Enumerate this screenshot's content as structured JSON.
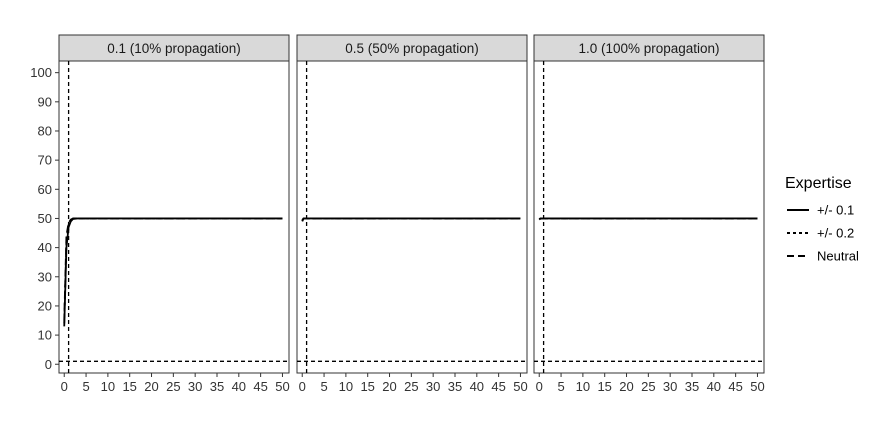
{
  "chart_data": {
    "type": "line",
    "facets": [
      {
        "label": "0.1 (10% propagation)",
        "series": [
          {
            "name": "+/- 0.1",
            "x": [
              0,
              0.5,
              1,
              1.5,
              2,
              3,
              5,
              10,
              20,
              30,
              40,
              50
            ],
            "y": [
              13,
              40,
              47,
              49,
              49.8,
              50,
              50,
              50,
              50,
              50,
              50,
              50
            ]
          },
          {
            "name": "+/- 0.2",
            "x": [
              0,
              0.5,
              1,
              1.5,
              2,
              3,
              5,
              10,
              20,
              30,
              40,
              50
            ],
            "y": [
              14,
              42,
              48,
              49.5,
              50,
              50,
              50,
              50,
              50,
              50,
              50,
              50
            ]
          },
          {
            "name": "Neutral",
            "x": [
              0,
              0.5,
              1,
              1.5,
              2,
              3,
              5,
              10,
              20,
              30,
              40,
              50
            ],
            "y": [
              15,
              44,
              48.5,
              49.6,
              50,
              50,
              50,
              50,
              50,
              50,
              50,
              50
            ]
          }
        ]
      },
      {
        "label": "0.5 (50% propagation)",
        "series": [
          {
            "name": "+/- 0.1",
            "x": [
              0,
              0.3,
              1,
              5,
              10,
              20,
              30,
              40,
              50
            ],
            "y": [
              49,
              50,
              50,
              50,
              50,
              50,
              50,
              50,
              50
            ]
          },
          {
            "name": "+/- 0.2",
            "x": [
              0,
              0.3,
              1,
              5,
              10,
              20,
              30,
              40,
              50
            ],
            "y": [
              49.2,
              50,
              50,
              50,
              50,
              50,
              50,
              50,
              50
            ]
          },
          {
            "name": "Neutral",
            "x": [
              0,
              0.3,
              1,
              5,
              10,
              20,
              30,
              40,
              50
            ],
            "y": [
              49.4,
              50,
              50,
              50,
              50,
              50,
              50,
              50,
              50
            ]
          }
        ]
      },
      {
        "label": "1.0 (100% propagation)",
        "series": [
          {
            "name": "+/- 0.1",
            "x": [
              0,
              0.3,
              1,
              5,
              10,
              20,
              30,
              40,
              50
            ],
            "y": [
              49.6,
              50,
              50,
              50,
              50,
              50,
              50,
              50,
              50
            ]
          },
          {
            "name": "+/- 0.2",
            "x": [
              0,
              0.3,
              1,
              5,
              10,
              20,
              30,
              40,
              50
            ],
            "y": [
              49.7,
              50,
              50,
              50,
              50,
              50,
              50,
              50,
              50
            ]
          },
          {
            "name": "Neutral",
            "x": [
              0,
              0.3,
              1,
              5,
              10,
              20,
              30,
              40,
              50
            ],
            "y": [
              49.8,
              50,
              50,
              50,
              50,
              50,
              50,
              50,
              50
            ]
          }
        ]
      }
    ],
    "reference_lines": {
      "vertical_x": 1,
      "horizontal_y": 1
    },
    "xlim": [
      -1.2,
      51.5
    ],
    "ylim": [
      -3,
      104
    ],
    "x_ticks": [
      "0",
      "5",
      "10",
      "15",
      "20",
      "25",
      "30",
      "35",
      "40",
      "45",
      "50"
    ],
    "y_ticks": [
      "0",
      "10",
      "20",
      "30",
      "40",
      "50",
      "60",
      "70",
      "80",
      "90",
      "100"
    ],
    "xlabel": "",
    "ylabel": "",
    "legend": {
      "title": "Expertise",
      "position": "right",
      "entries": [
        "+/- 0.1",
        "+/- 0.2",
        "Neutral"
      ]
    },
    "styles": {
      "line_color": "#000000",
      "strip_fill": "#d9d9d9",
      "border_color": "#333333",
      "dash_patterns": [
        "",
        "3,3",
        "7,4"
      ]
    },
    "grid": false
  }
}
